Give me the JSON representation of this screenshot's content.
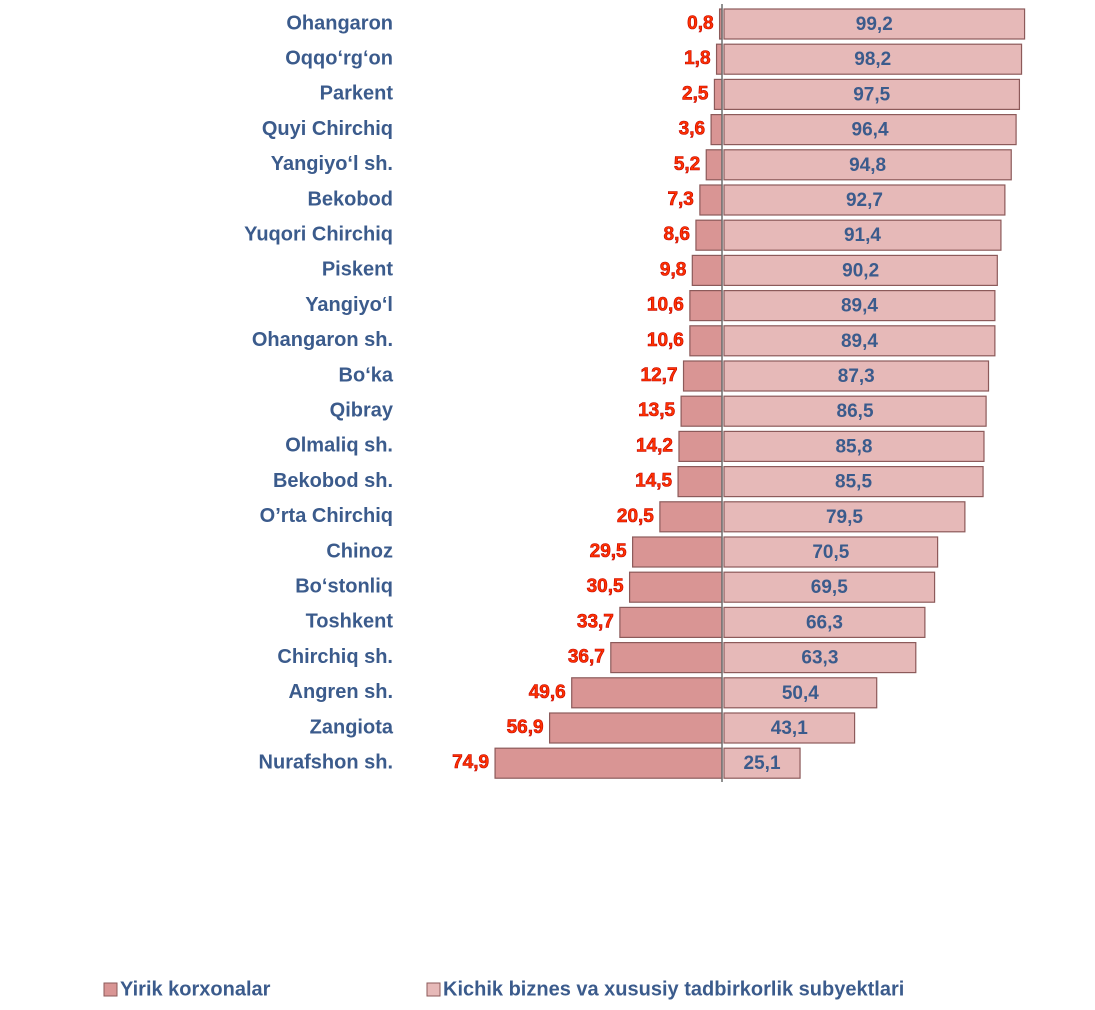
{
  "chart_data": {
    "type": "bar",
    "orientation": "diverging",
    "categories": [
      "Ohangaron",
      "Oqqo‘rg‘on",
      "Parkent",
      "Quyi Chirchiq",
      "Yangiyo‘l sh.",
      "Bekobod",
      "Yuqori Chirchiq",
      "Piskent",
      "Yangiyo‘l",
      "Ohangaron sh.",
      "Bo‘ka",
      "Qibray",
      "Olmaliq sh.",
      "Bekobod sh.",
      "O’rta Chirchiq",
      "Chinoz",
      "Bo‘stonliq",
      "Toshkent",
      "Chirchiq sh.",
      "Angren sh.",
      "Zangiota",
      "Nurafshon sh."
    ],
    "series": [
      {
        "name": "Yirik korxonalar",
        "color": "#d99594",
        "values": [
          0.8,
          1.8,
          2.5,
          3.6,
          5.2,
          7.3,
          8.6,
          9.8,
          10.6,
          10.6,
          12.7,
          13.5,
          14.2,
          14.5,
          20.5,
          29.5,
          30.5,
          33.7,
          36.7,
          49.6,
          56.9,
          74.9
        ],
        "value_labels": [
          "0,8",
          "1,8",
          "2,5",
          "3,6",
          "5,2",
          "7,3",
          "8,6",
          "9,8",
          "10,6",
          "10,6",
          "12,7",
          "13,5",
          "14,2",
          "14,5",
          "20,5",
          "29,5",
          "30,5",
          "33,7",
          "36,7",
          "49,6",
          "56,9",
          "74,9"
        ]
      },
      {
        "name": "Kichik biznes va xususiy tadbirkorlik subyektlari",
        "color": "#e6b9b8",
        "values": [
          99.2,
          98.2,
          97.5,
          96.4,
          94.8,
          92.7,
          91.4,
          90.2,
          89.4,
          89.4,
          87.3,
          86.5,
          85.8,
          85.5,
          79.5,
          70.5,
          69.5,
          66.3,
          63.3,
          50.4,
          43.1,
          25.1
        ],
        "value_labels": [
          "99,2",
          "98,2",
          "97,5",
          "96,4",
          "94,8",
          "92,7",
          "91,4",
          "90,2",
          "89,4",
          "89,4",
          "87,3",
          "86,5",
          "85,8",
          "85,5",
          "79,5",
          "70,5",
          "69,5",
          "66,3",
          "63,3",
          "50,4",
          "43,1",
          "25,1"
        ]
      }
    ],
    "legend": "bottom"
  }
}
